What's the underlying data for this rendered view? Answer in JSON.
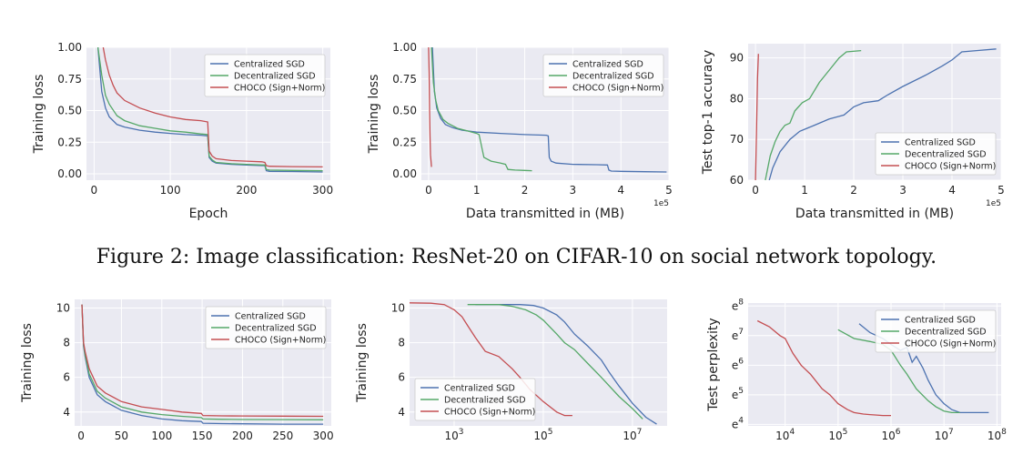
{
  "caption": "Figure 2:   Image classification: ResNet-20 on CIFAR-10 on social network topology.",
  "colors": {
    "centralized": "#4c72b0",
    "decentralized": "#55a868",
    "choco": "#c44e52",
    "plot_bg": "#eaeaf2",
    "grid": "#ffffff",
    "text": "#222222"
  },
  "chart_data": [
    {
      "type": "line",
      "xlabel": "Epoch",
      "ylabel": "Training loss",
      "xlim": [
        -10,
        310
      ],
      "ylim": [
        -0.05,
        1.0
      ],
      "xticks": [
        0,
        100,
        200,
        300
      ],
      "xtick_labels": [
        "0",
        "100",
        "200",
        "300"
      ],
      "yticks": [
        0,
        0.25,
        0.5,
        0.75,
        1.0
      ],
      "ytick_labels": [
        "0.00",
        "0.25",
        "0.50",
        "0.75",
        "1.00"
      ],
      "legend": "top-right",
      "series": [
        {
          "name": "Centralized SGD",
          "x": [
            5,
            10,
            15,
            20,
            30,
            40,
            60,
            80,
            100,
            120,
            140,
            149,
            151,
            155,
            160,
            180,
            200,
            220,
            224,
            226,
            230,
            260,
            300
          ],
          "y": [
            1.0,
            0.65,
            0.52,
            0.45,
            0.39,
            0.37,
            0.345,
            0.33,
            0.32,
            0.31,
            0.305,
            0.3,
            0.13,
            0.1,
            0.085,
            0.075,
            0.07,
            0.065,
            0.065,
            0.025,
            0.02,
            0.018,
            0.015
          ]
        },
        {
          "name": "Decentralized SGD",
          "x": [
            5,
            10,
            15,
            20,
            30,
            40,
            60,
            80,
            100,
            120,
            140,
            149,
            151,
            155,
            160,
            180,
            200,
            220,
            224,
            226,
            230,
            260,
            300
          ],
          "y": [
            1.0,
            0.78,
            0.62,
            0.55,
            0.46,
            0.42,
            0.38,
            0.36,
            0.34,
            0.33,
            0.315,
            0.31,
            0.14,
            0.11,
            0.09,
            0.08,
            0.075,
            0.07,
            0.07,
            0.035,
            0.03,
            0.027,
            0.025
          ]
        },
        {
          "name": "CHOCO (Sign+Norm)",
          "x": [
            12,
            15,
            20,
            25,
            30,
            40,
            50,
            60,
            80,
            100,
            120,
            140,
            149,
            151,
            155,
            160,
            180,
            200,
            220,
            224,
            226,
            230,
            260,
            300
          ],
          "y": [
            1.0,
            0.9,
            0.78,
            0.7,
            0.64,
            0.58,
            0.55,
            0.52,
            0.48,
            0.45,
            0.43,
            0.42,
            0.41,
            0.18,
            0.14,
            0.12,
            0.105,
            0.1,
            0.095,
            0.09,
            0.065,
            0.06,
            0.057,
            0.055
          ]
        }
      ]
    },
    {
      "type": "line",
      "xlabel": "Data transmitted in (MB)",
      "ylabel": "Training loss",
      "x_multiplier_label": "1e5",
      "xlim": [
        -0.15,
        5.0
      ],
      "ylim": [
        -0.05,
        1.0
      ],
      "xticks": [
        0,
        1,
        2,
        3,
        4,
        5
      ],
      "xtick_labels": [
        "0",
        "1",
        "2",
        "3",
        "4",
        "5"
      ],
      "yticks": [
        0,
        0.25,
        0.5,
        0.75,
        1.0
      ],
      "ytick_labels": [
        "0.00",
        "0.25",
        "0.50",
        "0.75",
        "1.00"
      ],
      "legend": "top-right",
      "series": [
        {
          "name": "Centralized SGD",
          "x": [
            0.08,
            0.12,
            0.17,
            0.25,
            0.35,
            0.5,
            0.7,
            1.0,
            1.5,
            2.0,
            2.45,
            2.49,
            2.51,
            2.55,
            2.65,
            3.0,
            3.5,
            3.72,
            3.75,
            3.8,
            4.0,
            4.5,
            4.95
          ],
          "y": [
            1.0,
            0.65,
            0.52,
            0.44,
            0.39,
            0.365,
            0.345,
            0.33,
            0.32,
            0.31,
            0.305,
            0.3,
            0.13,
            0.1,
            0.085,
            0.075,
            0.072,
            0.07,
            0.03,
            0.022,
            0.02,
            0.017,
            0.015
          ]
        },
        {
          "name": "Decentralized SGD",
          "x": [
            0.06,
            0.1,
            0.15,
            0.2,
            0.3,
            0.4,
            0.6,
            0.8,
            1.0,
            1.05,
            1.15,
            1.3,
            1.5,
            1.6,
            1.65,
            1.8,
            2.0,
            2.15
          ],
          "y": [
            1.0,
            0.72,
            0.58,
            0.5,
            0.43,
            0.4,
            0.36,
            0.34,
            0.32,
            0.31,
            0.13,
            0.1,
            0.085,
            0.075,
            0.035,
            0.03,
            0.027,
            0.025
          ]
        },
        {
          "name": "CHOCO (Sign+Norm)",
          "x": [
            0.0,
            0.01,
            0.02,
            0.03,
            0.04,
            0.05,
            0.06
          ],
          "y": [
            1.0,
            0.8,
            0.5,
            0.3,
            0.15,
            0.1,
            0.055
          ]
        }
      ]
    },
    {
      "type": "line",
      "xlabel": "Data transmitted in (MB)",
      "ylabel": "Test top-1 accuracy",
      "x_multiplier_label": "1e5",
      "xlim": [
        -0.15,
        5.0
      ],
      "ylim": [
        60,
        93.5
      ],
      "xticks": [
        0,
        1,
        2,
        3,
        4,
        5
      ],
      "xtick_labels": [
        "0",
        "1",
        "2",
        "3",
        "4",
        "5"
      ],
      "yticks": [
        60,
        70,
        80,
        90
      ],
      "ytick_labels": [
        "60",
        "70",
        "80",
        "90"
      ],
      "legend": "bottom-right",
      "series": [
        {
          "name": "Centralized SGD",
          "x": [
            0.28,
            0.35,
            0.5,
            0.7,
            0.9,
            1.2,
            1.5,
            1.8,
            2.0,
            2.2,
            2.5,
            2.7,
            3.0,
            3.5,
            3.8,
            4.0,
            4.2,
            4.5,
            4.9
          ],
          "y": [
            60,
            63,
            67,
            70,
            72,
            73.5,
            75,
            76,
            78,
            79,
            79.5,
            81,
            83,
            86,
            88,
            89.5,
            91.5,
            91.8,
            92.2
          ]
        },
        {
          "name": "Decentralized SGD",
          "x": [
            0.2,
            0.3,
            0.4,
            0.5,
            0.6,
            0.7,
            0.8,
            0.95,
            1.1,
            1.3,
            1.5,
            1.7,
            1.85,
            2.15
          ],
          "y": [
            60,
            66,
            69.5,
            72,
            73.5,
            74,
            77,
            79,
            80,
            84,
            87,
            90,
            91.5,
            91.8
          ]
        },
        {
          "name": "CHOCO (Sign+Norm)",
          "x": [
            0.0,
            0.02,
            0.04,
            0.06
          ],
          "y": [
            60,
            72,
            85,
            91
          ]
        }
      ]
    },
    {
      "type": "line",
      "xlabel": "",
      "ylabel": "Training loss",
      "xlim": [
        -8,
        310
      ],
      "ylim": [
        3.2,
        10.5
      ],
      "xticks": [
        0,
        50,
        100,
        150,
        200,
        250,
        300
      ],
      "xtick_labels": [
        "0",
        "50",
        "100",
        "150",
        "200",
        "250",
        "300"
      ],
      "yticks": [
        4,
        6,
        8,
        10
      ],
      "ytick_labels": [
        "4",
        "6",
        "8",
        "10"
      ],
      "legend": "top-right",
      "series": [
        {
          "name": "Centralized SGD",
          "x": [
            1,
            3,
            5,
            10,
            20,
            30,
            50,
            75,
            100,
            125,
            149,
            151,
            175,
            200,
            250,
            300
          ],
          "y": [
            10.2,
            7.8,
            7.2,
            6.0,
            5.0,
            4.6,
            4.1,
            3.8,
            3.6,
            3.5,
            3.45,
            3.35,
            3.33,
            3.32,
            3.3,
            3.3
          ]
        },
        {
          "name": "Decentralized SGD",
          "x": [
            1,
            3,
            5,
            10,
            20,
            30,
            50,
            75,
            100,
            125,
            149,
            151,
            175,
            200,
            250,
            300
          ],
          "y": [
            10.2,
            7.9,
            7.3,
            6.2,
            5.2,
            4.8,
            4.3,
            4.0,
            3.85,
            3.75,
            3.68,
            3.6,
            3.58,
            3.57,
            3.56,
            3.55
          ]
        },
        {
          "name": "CHOCO (Sign+Norm)",
          "x": [
            1,
            3,
            5,
            10,
            20,
            30,
            50,
            75,
            100,
            125,
            149,
            151,
            175,
            200,
            250,
            300
          ],
          "y": [
            10.2,
            8.0,
            7.5,
            6.5,
            5.5,
            5.1,
            4.6,
            4.3,
            4.15,
            4.0,
            3.92,
            3.8,
            3.78,
            3.77,
            3.76,
            3.75
          ]
        }
      ]
    },
    {
      "type": "line",
      "xscale": "log",
      "xlabel": "",
      "ylabel": "Training loss",
      "xlim": [
        100,
        60000000
      ],
      "ylim": [
        3.2,
        10.5
      ],
      "xticks": [
        1000,
        100000,
        10000000
      ],
      "xtick_labels": [
        "10",
        "10",
        "10"
      ],
      "xtick_exponents": [
        "3",
        "5",
        "7"
      ],
      "yticks": [
        4,
        6,
        8,
        10
      ],
      "ytick_labels": [
        "4",
        "6",
        "8",
        "10"
      ],
      "legend": "bottom-left",
      "series": [
        {
          "name": "Centralized SGD",
          "x": [
            3000,
            10000,
            30000,
            60000,
            100000,
            200000,
            300000,
            500000,
            1000000,
            2000000,
            3000000,
            5000000,
            10000000,
            20000000,
            35000000
          ],
          "y": [
            10.2,
            10.2,
            10.2,
            10.15,
            10.0,
            9.6,
            9.2,
            8.5,
            7.8,
            7.0,
            6.3,
            5.5,
            4.5,
            3.7,
            3.3
          ]
        },
        {
          "name": "Decentralized SGD",
          "x": [
            2000,
            5000,
            10000,
            20000,
            40000,
            70000,
            100000,
            200000,
            300000,
            500000,
            1000000,
            2000000,
            5000000,
            10000000,
            17000000
          ],
          "y": [
            10.2,
            10.2,
            10.2,
            10.1,
            9.9,
            9.6,
            9.3,
            8.5,
            8.0,
            7.6,
            6.8,
            6.0,
            4.9,
            4.2,
            3.6
          ]
        },
        {
          "name": "CHOCO (Sign+Norm)",
          "x": [
            100,
            300,
            600,
            1000,
            1500,
            2000,
            3000,
            5000,
            10000,
            20000,
            30000,
            50000,
            100000,
            200000,
            300000,
            450000
          ],
          "y": [
            10.3,
            10.28,
            10.2,
            9.9,
            9.5,
            9.0,
            8.3,
            7.5,
            7.2,
            6.5,
            6.0,
            5.3,
            4.6,
            4.0,
            3.8,
            3.8
          ]
        }
      ]
    },
    {
      "type": "line",
      "xscale": "log",
      "xlabel": "",
      "ylabel": "Test perplexity",
      "xlim": [
        2000,
        120000000
      ],
      "ylim": [
        3.95,
        8.1
      ],
      "yscale": "exp (ln-scaled)",
      "xticks": [
        10000,
        100000,
        1000000,
        10000000,
        100000000
      ],
      "xtick_labels": [
        "10",
        "10",
        "10",
        "10",
        "10"
      ],
      "xtick_exponents": [
        "4",
        "5",
        "6",
        "7",
        "8"
      ],
      "yticks": [
        4,
        5,
        6,
        7,
        8
      ],
      "ytick_labels": [
        "e",
        "e",
        "e",
        "e",
        "e"
      ],
      "ytick_exponents": [
        "4",
        "5",
        "6",
        "7",
        "8"
      ],
      "legend": "top-right",
      "series": [
        {
          "name": "Centralized SGD",
          "x": [
            250000,
            400000,
            700000,
            1000000,
            1500000,
            2000000,
            2500000,
            3000000,
            4000000,
            5000000,
            7000000,
            10000000,
            14000000,
            20000000,
            40000000,
            70000000
          ],
          "y": [
            7.4,
            7.1,
            6.9,
            6.7,
            6.5,
            6.6,
            6.1,
            6.3,
            5.9,
            5.5,
            5.0,
            4.7,
            4.5,
            4.4,
            4.4,
            4.4
          ]
        },
        {
          "name": "Decentralized SGD",
          "x": [
            100000,
            200000,
            400000,
            700000,
            1000000,
            1500000,
            2000000,
            3000000,
            5000000,
            7000000,
            10000000,
            14000000,
            20000000
          ],
          "y": [
            7.2,
            6.9,
            6.8,
            6.7,
            6.5,
            6.0,
            5.7,
            5.2,
            4.8,
            4.6,
            4.45,
            4.4,
            4.4
          ]
        },
        {
          "name": "CHOCO (Sign+Norm)",
          "x": [
            3000,
            5000,
            8000,
            10000,
            14000,
            20000,
            30000,
            50000,
            70000,
            100000,
            150000,
            200000,
            300000,
            400000,
            500000,
            700000,
            1000000
          ],
          "y": [
            7.5,
            7.3,
            7.0,
            6.9,
            6.4,
            6.0,
            5.7,
            5.2,
            5.0,
            4.7,
            4.5,
            4.4,
            4.35,
            4.33,
            4.32,
            4.3,
            4.3
          ]
        }
      ]
    }
  ]
}
